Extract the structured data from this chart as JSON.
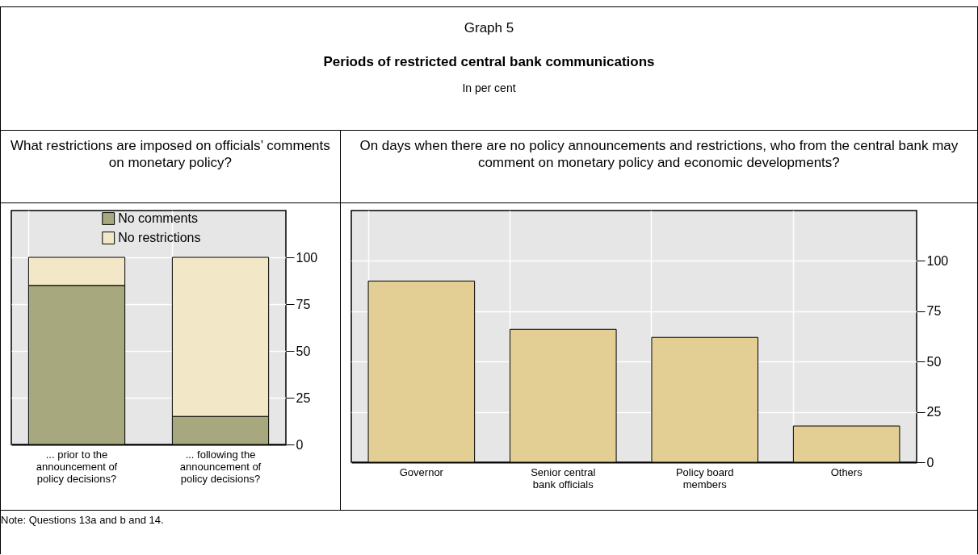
{
  "chart_data": [
    {
      "type": "other",
      "title": "Periods of restricted central bank communications",
      "subtitle": "In per cent",
      "annotations": [
        "Graph 5",
        "Note: Questions 13a and b and 14."
      ]
    },
    {
      "type": "bar",
      "title": "What restrictions are imposed on officials’ comments on monetary policy?",
      "categories": [
        "... prior to the announcement of policy decisions?",
        "... following the announcement of policy decisions?"
      ],
      "stacked": true,
      "series": [
        {
          "name": "No comments",
          "color": "#a8a87e",
          "values": [
            85,
            15
          ]
        },
        {
          "name": "No restrictions",
          "color": "#f2e8c8",
          "values": [
            15,
            85
          ]
        }
      ],
      "ylim": [
        0,
        125
      ],
      "yticks": [
        0,
        25,
        50,
        75,
        100
      ],
      "grid": true,
      "legend": "top"
    },
    {
      "type": "bar",
      "title": "On days when there are no policy announcements and restrictions, who from the central bank may comment on monetary policy and economic developments?",
      "categories": [
        "Governor",
        "Senior central bank officials",
        "Policy board members",
        "Others"
      ],
      "values": [
        90,
        66,
        62,
        18
      ],
      "color": "#e3cf93",
      "ylim": [
        0,
        125
      ],
      "yticks": [
        0,
        25,
        50,
        75,
        100
      ],
      "grid": true
    }
  ]
}
